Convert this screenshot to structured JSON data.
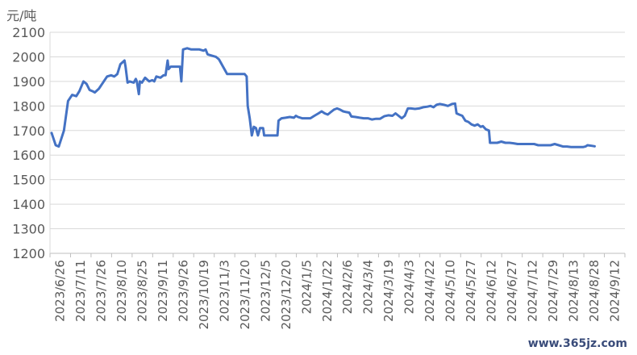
{
  "chart_data": {
    "type": "line",
    "unit_label": "元/吨",
    "ylim": [
      1200,
      2100
    ],
    "yticks": [
      1200,
      1300,
      1400,
      1500,
      1600,
      1700,
      1800,
      1900,
      2000,
      2100
    ],
    "grid": "horizontal",
    "x_tick_labels": [
      "2023/6/26",
      "2023/7/11",
      "2023/7/26",
      "2023/8/10",
      "2023/8/25",
      "2023/9/11",
      "2023/9/26",
      "2023/10/19",
      "2023/11/3",
      "2023/11/20",
      "2023/12/5",
      "2023/12/20",
      "2024/1/5",
      "2024/1/22",
      "2024/2/6",
      "2024/3/4",
      "2024/3/19",
      "2024/4/3",
      "2024/4/22",
      "2024/5/10",
      "2024/5/27",
      "2024/6/12",
      "2024/6/27",
      "2024/7/12",
      "2024/7/29",
      "2024/8/13",
      "2024/8/28",
      "2024/9/12"
    ],
    "series": [
      {
        "color": "#4472c4",
        "points": [
          [
            0,
            1690
          ],
          [
            0.2,
            1640
          ],
          [
            0.35,
            1635
          ],
          [
            0.6,
            1700
          ],
          [
            0.8,
            1820
          ],
          [
            1.0,
            1845
          ],
          [
            1.2,
            1840
          ],
          [
            1.35,
            1860
          ],
          [
            1.55,
            1900
          ],
          [
            1.7,
            1890
          ],
          [
            1.85,
            1865
          ],
          [
            2.0,
            1860
          ],
          [
            2.1,
            1855
          ],
          [
            2.3,
            1870
          ],
          [
            2.5,
            1895
          ],
          [
            2.7,
            1920
          ],
          [
            2.9,
            1925
          ],
          [
            3.05,
            1920
          ],
          [
            3.2,
            1930
          ],
          [
            3.35,
            1970
          ],
          [
            3.55,
            1985
          ],
          [
            3.6,
            1960
          ],
          [
            3.7,
            1895
          ],
          [
            3.8,
            1900
          ],
          [
            4.0,
            1895
          ],
          [
            4.1,
            1910
          ],
          [
            4.15,
            1900
          ],
          [
            4.25,
            1848
          ],
          [
            4.3,
            1900
          ],
          [
            4.4,
            1895
          ],
          [
            4.55,
            1915
          ],
          [
            4.75,
            1900
          ],
          [
            4.9,
            1905
          ],
          [
            5.0,
            1900
          ],
          [
            5.1,
            1920
          ],
          [
            5.3,
            1915
          ],
          [
            5.45,
            1925
          ],
          [
            5.55,
            1925
          ],
          [
            5.65,
            1985
          ],
          [
            5.7,
            1950
          ],
          [
            5.8,
            1960
          ],
          [
            5.95,
            1960
          ],
          [
            6.1,
            1960
          ],
          [
            6.25,
            1960
          ],
          [
            6.32,
            1900
          ],
          [
            6.4,
            2030
          ],
          [
            6.6,
            2035
          ],
          [
            6.8,
            2030
          ],
          [
            7.0,
            2030
          ],
          [
            7.2,
            2030
          ],
          [
            7.4,
            2025
          ],
          [
            7.5,
            2030
          ],
          [
            7.6,
            2010
          ],
          [
            7.8,
            2005
          ],
          [
            8.0,
            2000
          ],
          [
            8.15,
            1990
          ],
          [
            8.25,
            1975
          ],
          [
            8.35,
            1960
          ],
          [
            8.45,
            1945
          ],
          [
            8.55,
            1930
          ],
          [
            8.8,
            1930
          ],
          [
            9.0,
            1930
          ],
          [
            9.2,
            1930
          ],
          [
            9.4,
            1930
          ],
          [
            9.5,
            1920
          ],
          [
            9.55,
            1800
          ],
          [
            9.65,
            1750
          ],
          [
            9.75,
            1680
          ],
          [
            9.85,
            1715
          ],
          [
            9.95,
            1710
          ],
          [
            10.05,
            1680
          ],
          [
            10.15,
            1710
          ],
          [
            10.3,
            1710
          ],
          [
            10.35,
            1680
          ],
          [
            10.6,
            1680
          ],
          [
            10.9,
            1680
          ],
          [
            11.0,
            1680
          ],
          [
            11.05,
            1740
          ],
          [
            11.2,
            1750
          ],
          [
            11.4,
            1752
          ],
          [
            11.6,
            1755
          ],
          [
            11.8,
            1752
          ],
          [
            11.9,
            1760
          ],
          [
            12.0,
            1755
          ],
          [
            12.2,
            1750
          ],
          [
            12.4,
            1750
          ],
          [
            12.6,
            1750
          ],
          [
            12.8,
            1760
          ],
          [
            13.0,
            1770
          ],
          [
            13.15,
            1778
          ],
          [
            13.3,
            1770
          ],
          [
            13.45,
            1765
          ],
          [
            13.6,
            1775
          ],
          [
            13.75,
            1785
          ],
          [
            13.9,
            1790
          ],
          [
            14.05,
            1785
          ],
          [
            14.2,
            1778
          ],
          [
            14.35,
            1775
          ],
          [
            14.5,
            1773
          ],
          [
            14.6,
            1757
          ],
          [
            14.8,
            1755
          ],
          [
            15.0,
            1752
          ],
          [
            15.2,
            1750
          ],
          [
            15.4,
            1750
          ],
          [
            15.6,
            1745
          ],
          [
            15.8,
            1748
          ],
          [
            16.0,
            1748
          ],
          [
            16.2,
            1758
          ],
          [
            16.4,
            1762
          ],
          [
            16.6,
            1760
          ],
          [
            16.75,
            1770
          ],
          [
            16.9,
            1760
          ],
          [
            17.05,
            1750
          ],
          [
            17.2,
            1760
          ],
          [
            17.35,
            1790
          ],
          [
            17.5,
            1790
          ],
          [
            17.7,
            1788
          ],
          [
            17.9,
            1790
          ],
          [
            18.1,
            1795
          ],
          [
            18.3,
            1797
          ],
          [
            18.45,
            1800
          ],
          [
            18.6,
            1795
          ],
          [
            18.75,
            1805
          ],
          [
            18.9,
            1808
          ],
          [
            19.1,
            1805
          ],
          [
            19.3,
            1800
          ],
          [
            19.5,
            1808
          ],
          [
            19.65,
            1810
          ],
          [
            19.72,
            1770
          ],
          [
            19.85,
            1765
          ],
          [
            20.0,
            1760
          ],
          [
            20.15,
            1740
          ],
          [
            20.3,
            1735
          ],
          [
            20.45,
            1725
          ],
          [
            20.6,
            1720
          ],
          [
            20.75,
            1725
          ],
          [
            20.9,
            1715
          ],
          [
            21.0,
            1718
          ],
          [
            21.15,
            1705
          ],
          [
            21.3,
            1700
          ],
          [
            21.35,
            1650
          ],
          [
            21.5,
            1650
          ],
          [
            21.7,
            1650
          ],
          [
            21.9,
            1655
          ],
          [
            22.1,
            1650
          ],
          [
            22.3,
            1650
          ],
          [
            22.5,
            1648
          ],
          [
            22.7,
            1645
          ],
          [
            22.9,
            1645
          ],
          [
            23.1,
            1645
          ],
          [
            23.3,
            1645
          ],
          [
            23.5,
            1645
          ],
          [
            23.7,
            1640
          ],
          [
            23.9,
            1640
          ],
          [
            24.1,
            1640
          ],
          [
            24.3,
            1640
          ],
          [
            24.5,
            1645
          ],
          [
            24.7,
            1640
          ],
          [
            24.9,
            1635
          ],
          [
            25.1,
            1635
          ],
          [
            25.3,
            1633
          ],
          [
            25.5,
            1633
          ],
          [
            25.7,
            1633
          ],
          [
            25.9,
            1633
          ],
          [
            26.0,
            1635
          ],
          [
            26.1,
            1640
          ],
          [
            26.3,
            1638
          ],
          [
            26.45,
            1636
          ]
        ]
      }
    ]
  },
  "watermark_text": "www.365jz.com"
}
